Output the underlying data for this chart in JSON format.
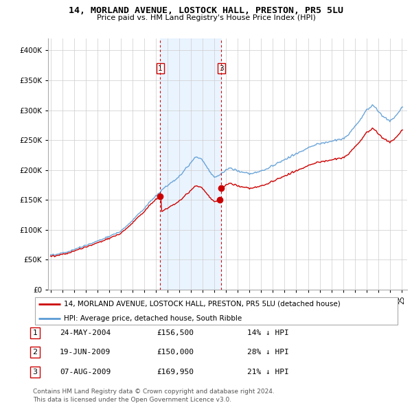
{
  "title": "14, MORLAND AVENUE, LOSTOCK HALL, PRESTON, PR5 5LU",
  "subtitle": "Price paid vs. HM Land Registry's House Price Index (HPI)",
  "legend_red": "14, MORLAND AVENUE, LOSTOCK HALL, PRESTON, PR5 5LU (detached house)",
  "legend_blue": "HPI: Average price, detached house, South Ribble",
  "footer": "Contains HM Land Registry data © Crown copyright and database right 2024.\nThis data is licensed under the Open Government Licence v3.0.",
  "transactions": [
    {
      "label": "1",
      "date": "24-MAY-2004",
      "price": 156500,
      "pct": "14%",
      "dir": "↓",
      "year": 2004.38
    },
    {
      "label": "2",
      "date": "19-JUN-2009",
      "price": 150000,
      "pct": "28%",
      "dir": "↓",
      "year": 2009.46
    },
    {
      "label": "3",
      "date": "07-AUG-2009",
      "price": 169950,
      "pct": "21%",
      "dir": "↓",
      "year": 2009.6
    }
  ],
  "vline_years": [
    2004.38,
    2009.6
  ],
  "vline_labels": [
    "1",
    "3"
  ],
  "shade_between": [
    2004.38,
    2009.6
  ],
  "ylim": [
    0,
    420000
  ],
  "yticks": [
    0,
    50000,
    100000,
    150000,
    200000,
    250000,
    300000,
    350000,
    400000
  ],
  "xlim_start": 1995.0,
  "xlim_end": 2025.5,
  "color_red": "#cc0000",
  "color_blue": "#5b9bd5",
  "color_shade": "#ddeeff",
  "color_vline": "#cc0000",
  "bg_color": "#ffffff",
  "grid_color": "#cccccc"
}
